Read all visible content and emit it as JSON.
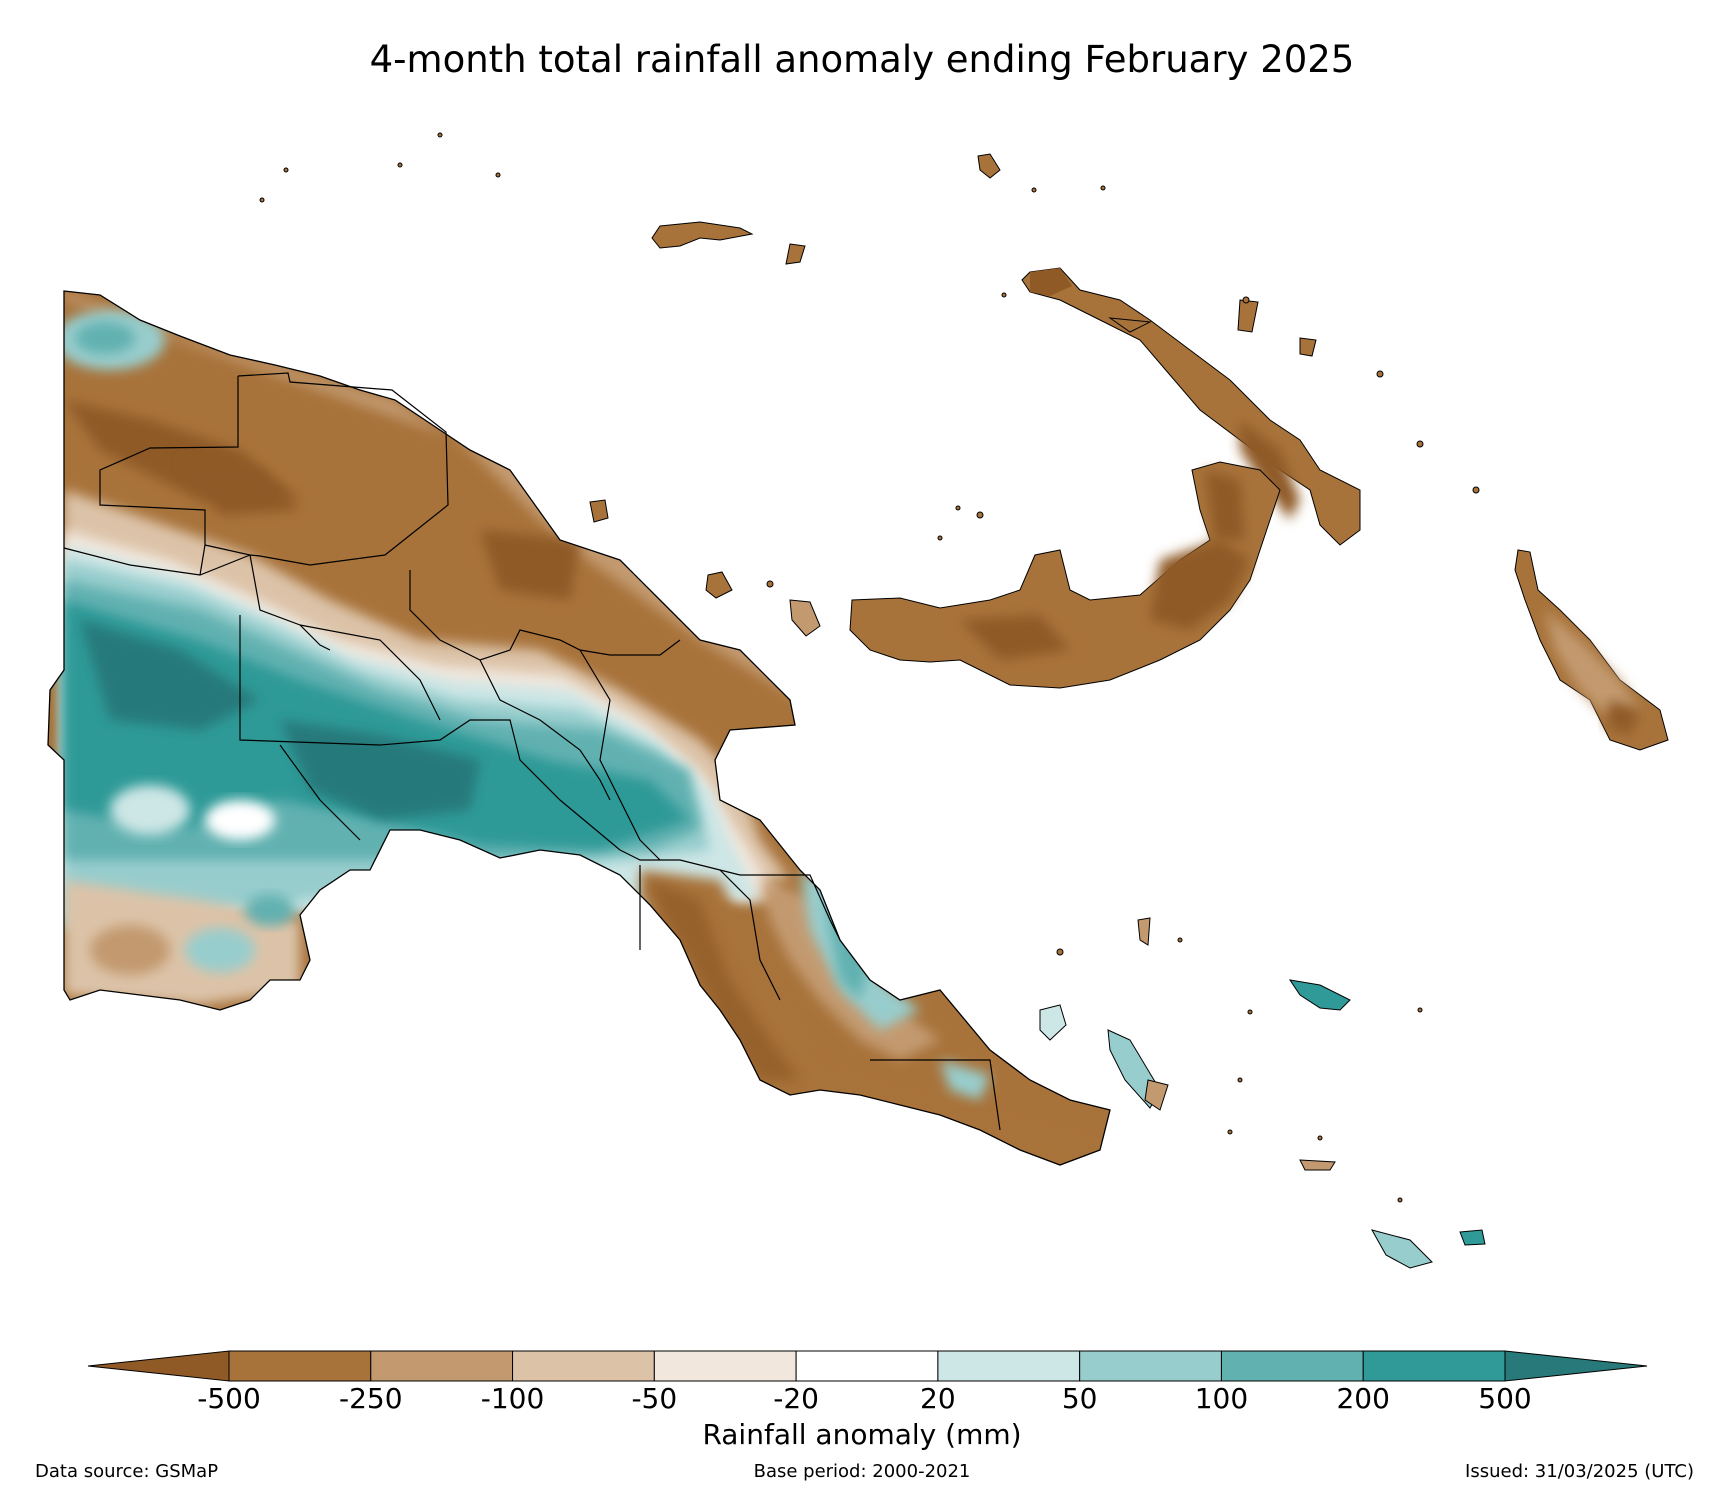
{
  "title": "4-month total rainfall anomaly ending February 2025",
  "colorbar": {
    "label": "Rainfall anomaly (mm)",
    "ticks": [
      "-500",
      "-250",
      "-100",
      "-50",
      "-20",
      "20",
      "50",
      "100",
      "200",
      "500"
    ],
    "colors": [
      "#8f5a26",
      "#a8733b",
      "#c39a6f",
      "#dcc3a8",
      "#f1e7dd",
      "#ffffff",
      "#cde6e6",
      "#98cdcd",
      "#62b1b1",
      "#2f9a97",
      "#27797a"
    ],
    "extend": "both"
  },
  "footer": {
    "source": "Data source: GSMaP",
    "base_period": "Base period: 2000-2021",
    "issued": "Issued: 31/03/2025 (UTC)"
  },
  "map": {
    "region": "Papua New Guinea",
    "legend_placement": "bottom"
  }
}
